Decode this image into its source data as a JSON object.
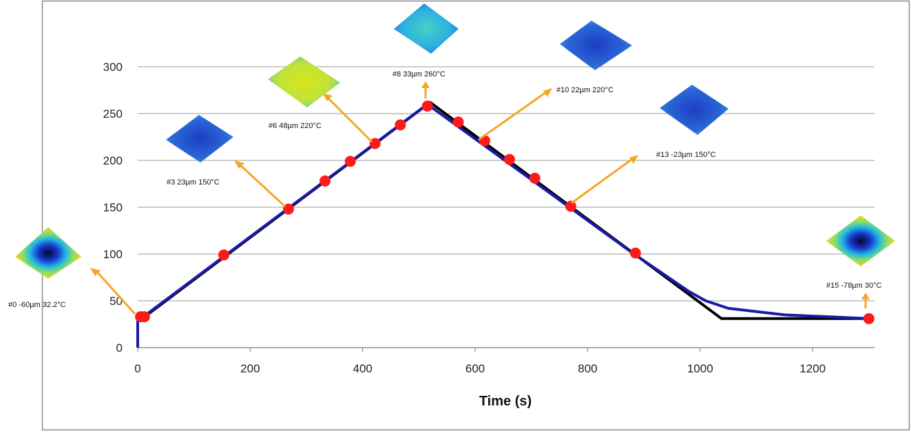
{
  "chart_data": {
    "type": "line",
    "title": "",
    "xlabel": "Time (s)",
    "ylabel": "",
    "xlim": [
      0,
      1310
    ],
    "ylim": [
      0,
      300
    ],
    "x_ticks": [
      0,
      200,
      400,
      600,
      800,
      1000,
      1200
    ],
    "y_ticks": [
      0,
      50,
      100,
      150,
      200,
      250,
      300
    ],
    "grid": "horizontal",
    "series": [
      {
        "color": "#000000",
        "points": [
          [
            0,
            0
          ],
          [
            0,
            32
          ],
          [
            10,
            32
          ],
          [
            520,
            262
          ],
          [
            1038,
            31
          ],
          [
            1308,
            31
          ]
        ]
      },
      {
        "color": "#1a1aa6",
        "points": [
          [
            0,
            0
          ],
          [
            0,
            32
          ],
          [
            10,
            33
          ],
          [
            515,
            260
          ],
          [
            880,
            101
          ],
          [
            980,
            60
          ],
          [
            1010,
            50
          ],
          [
            1050,
            42
          ],
          [
            1150,
            35
          ],
          [
            1300,
            31
          ]
        ]
      }
    ],
    "markers": [
      {
        "x": 5,
        "y": 33
      },
      {
        "x": 12,
        "y": 33
      },
      {
        "x": 153,
        "y": 99
      },
      {
        "x": 268,
        "y": 148
      },
      {
        "x": 333,
        "y": 178
      },
      {
        "x": 378,
        "y": 199
      },
      {
        "x": 422,
        "y": 218
      },
      {
        "x": 467,
        "y": 238
      },
      {
        "x": 515,
        "y": 258
      },
      {
        "x": 570,
        "y": 241
      },
      {
        "x": 617,
        "y": 221
      },
      {
        "x": 661,
        "y": 201
      },
      {
        "x": 706,
        "y": 181
      },
      {
        "x": 770,
        "y": 151
      },
      {
        "x": 885,
        "y": 101
      },
      {
        "x": 1300,
        "y": 31
      }
    ],
    "marker_color": "#ff1a1a",
    "annotations": [
      {
        "label": "#0  -60µm  32.2°C",
        "colormap": "center-low"
      },
      {
        "label": "#3  23µm  150°C",
        "colormap": "blue"
      },
      {
        "label": "#6  48µm  220°C",
        "colormap": "yellow"
      },
      {
        "label": "#8  33µm  260°C",
        "colormap": "cyan"
      },
      {
        "label": "#10  22µm  220°C",
        "colormap": "blue"
      },
      {
        "label": "#13  -23µm  150°C",
        "colormap": "blue"
      },
      {
        "label": "#15  -78µm  30°C",
        "colormap": "center-low"
      }
    ],
    "arrow_color": "#f5a623"
  }
}
